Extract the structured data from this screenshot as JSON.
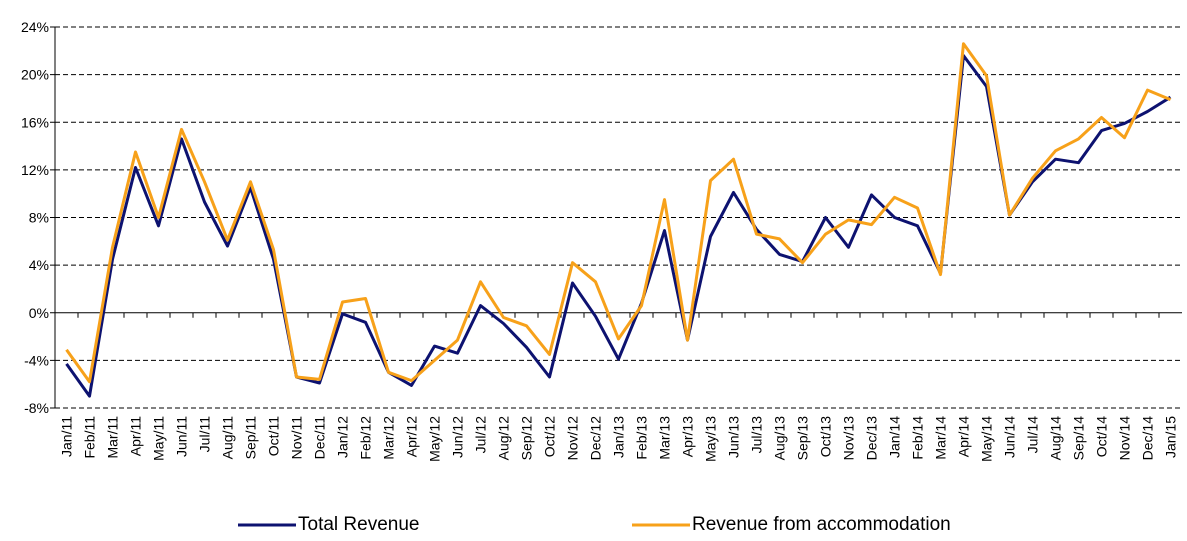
{
  "chart_data": {
    "type": "line",
    "categories": [
      "Jan/11",
      "Feb/11",
      "Mar/11",
      "Apr/11",
      "May/11",
      "Jun/11",
      "Jul/11",
      "Aug/11",
      "Sep/11",
      "Oct/11",
      "Nov/11",
      "Dec/11",
      "Jan/12",
      "Feb/12",
      "Mar/12",
      "Apr/12",
      "May/12",
      "Jun/12",
      "Jul/12",
      "Aug/12",
      "Sep/12",
      "Oct/12",
      "Nov/12",
      "Dec/12",
      "Jan/13",
      "Feb/13",
      "Mar/13",
      "Apr/13",
      "May/13",
      "Jun/13",
      "Jul/13",
      "Aug/13",
      "Sep/13",
      "Oct/13",
      "Nov/13",
      "Dec/13",
      "Jan/14",
      "Feb/14",
      "Mar/14",
      "Apr/14",
      "May/14",
      "Jun/14",
      "Jul/14",
      "Aug/14",
      "Sep/14",
      "Oct/14",
      "Nov/14",
      "Dec/14",
      "Jan/15"
    ],
    "series": [
      {
        "name": "Total Revenue",
        "color": "#0d1270",
        "values": [
          -4.3,
          -7.0,
          4.5,
          12.2,
          7.3,
          14.6,
          9.3,
          5.6,
          10.5,
          4.5,
          -5.4,
          -5.9,
          -0.1,
          -0.8,
          -5.0,
          -6.1,
          -2.8,
          -3.4,
          0.6,
          -0.9,
          -2.9,
          -5.4,
          2.5,
          -0.3,
          -3.9,
          0.8,
          6.9,
          -2.3,
          6.4,
          10.1,
          7.0,
          4.9,
          4.3,
          8.0,
          5.5,
          9.9,
          8.0,
          7.3,
          3.3,
          21.6,
          19.0,
          8.2,
          11.0,
          12.9,
          12.6,
          15.3,
          15.9,
          16.9,
          18.1
        ]
      },
      {
        "name": "Revenue from accommodation",
        "color": "#f7a11a",
        "values": [
          -3.1,
          -5.8,
          5.5,
          13.5,
          8.0,
          15.4,
          11.0,
          6.1,
          11.0,
          5.3,
          -5.4,
          -5.6,
          0.9,
          1.2,
          -5.0,
          -5.7,
          -4.0,
          -2.3,
          2.6,
          -0.4,
          -1.1,
          -3.5,
          4.2,
          2.6,
          -2.2,
          0.6,
          9.5,
          -2.3,
          11.1,
          12.9,
          6.6,
          6.2,
          4.2,
          6.6,
          7.8,
          7.4,
          9.7,
          8.8,
          3.2,
          22.6,
          19.9,
          8.2,
          11.3,
          13.6,
          14.6,
          16.4,
          14.7,
          18.7,
          17.9
        ]
      }
    ],
    "ylim": [
      -8,
      24
    ],
    "yticks": [
      {
        "value": -8,
        "label": "-8%"
      },
      {
        "value": -4,
        "label": "-4%"
      },
      {
        "value": 0,
        "label": "0%"
      },
      {
        "value": 4,
        "label": "4%"
      },
      {
        "value": 8,
        "label": "8%"
      },
      {
        "value": 12,
        "label": "12%"
      },
      {
        "value": 16,
        "label": "16%"
      },
      {
        "value": 20,
        "label": "20%"
      },
      {
        "value": 24,
        "label": "24%"
      }
    ],
    "grid": true,
    "legend": "bottom"
  }
}
